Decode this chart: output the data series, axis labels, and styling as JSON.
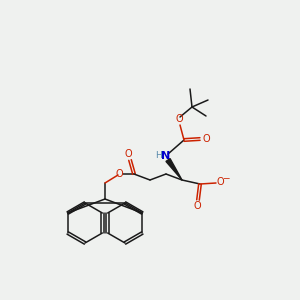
{
  "background_color": "#eff1ef",
  "figsize": [
    3.0,
    3.0
  ],
  "dpi": 100,
  "colors": {
    "carbon": "#1a1a1a",
    "oxygen": "#cc2200",
    "nitrogen": "#0000cc",
    "h_color": "#5588aa"
  },
  "layout": {
    "xlim": [
      0,
      300
    ],
    "ylim": [
      0,
      300
    ]
  }
}
